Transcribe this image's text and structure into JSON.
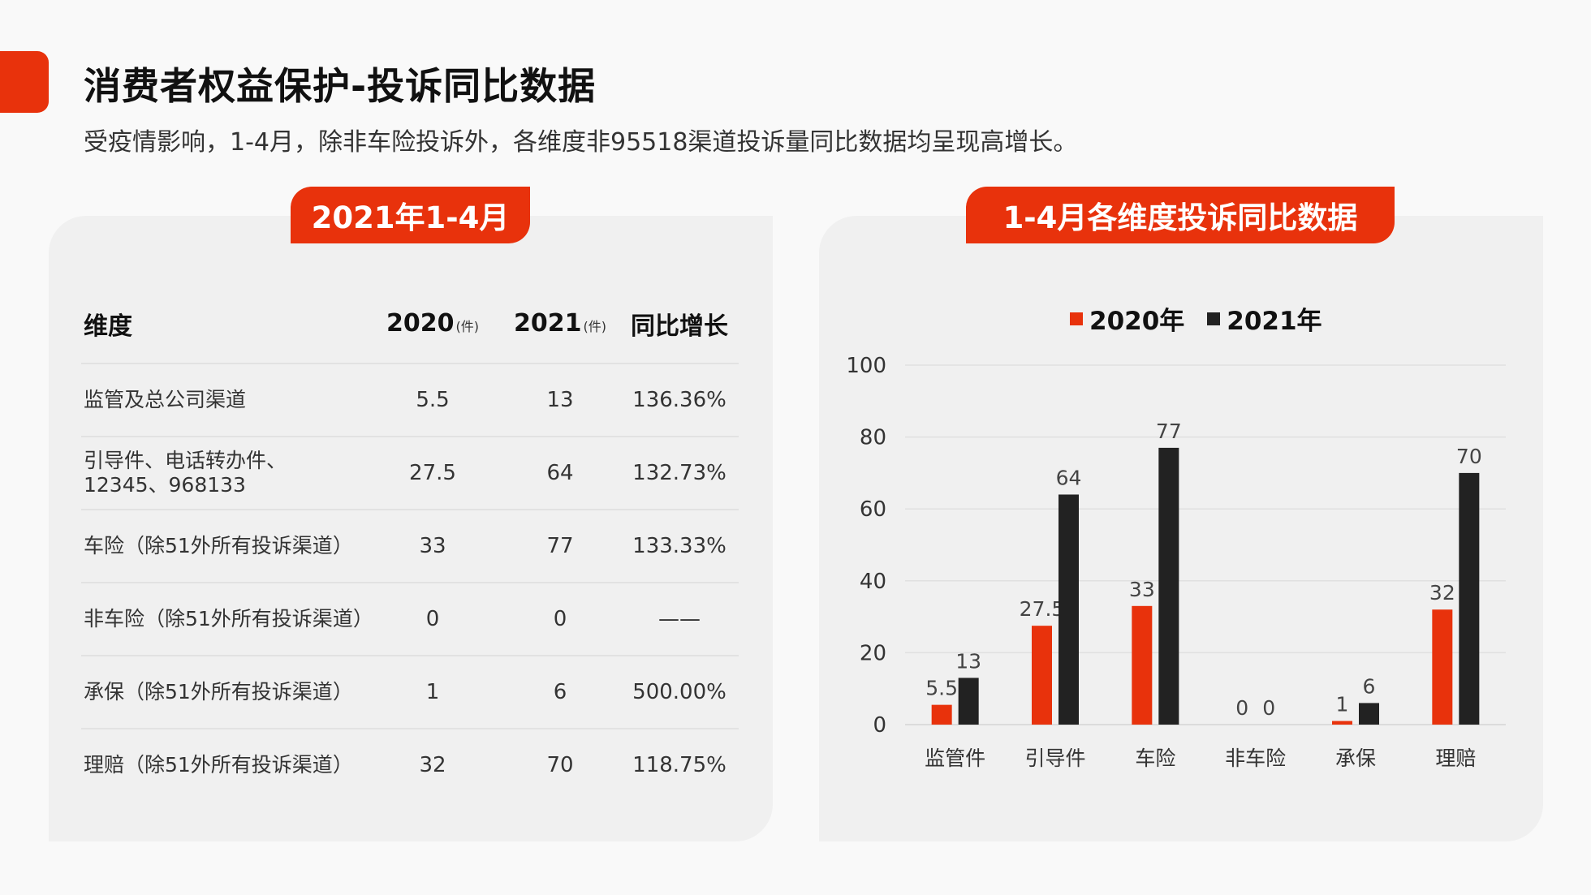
{
  "header": {
    "title": "消费者权益保护-投诉同比数据",
    "subtitle": "受疫情影响，1-4月，除非车险投诉外，各维度非95518渠道投诉量同比数据均呈现高增长。"
  },
  "left_panel": {
    "tab_label": "2021年1-4月",
    "columns": [
      {
        "label": "维度",
        "unit": ""
      },
      {
        "label": "2020",
        "unit": "(件)"
      },
      {
        "label": "2021",
        "unit": "(件)"
      },
      {
        "label": "同比增长",
        "unit": ""
      }
    ],
    "rows": [
      {
        "name": "监管及总公司渠道",
        "y2020": "5.5",
        "y2021": "13",
        "growth": "136.36%"
      },
      {
        "name": "引导件、电话转办件、12345、968133",
        "y2020": "27.5",
        "y2021": "64",
        "growth": "132.73%"
      },
      {
        "name": "车险（除51外所有投诉渠道）",
        "y2020": "33",
        "y2021": "77",
        "growth": "133.33%"
      },
      {
        "name": "非车险（除51外所有投诉渠道）",
        "y2020": "0",
        "y2021": "0",
        "growth": "——"
      },
      {
        "name": "承保（除51外所有投诉渠道）",
        "y2020": "1",
        "y2021": "6",
        "growth": "500.00%"
      },
      {
        "name": "理赔（除51外所有投诉渠道）",
        "y2020": "32",
        "y2021": "70",
        "growth": "118.75%"
      }
    ]
  },
  "right_panel": {
    "tab_label": "1-4月各维度投诉同比数据"
  },
  "colors": {
    "accent": "#e8320c",
    "series_2020": "#e8320c",
    "series_2021": "#222222"
  },
  "chart_data": {
    "type": "bar",
    "categories": [
      "监管件",
      "引导件",
      "车险",
      "非车险",
      "承保",
      "理赔"
    ],
    "series": [
      {
        "name": "2020年",
        "values": [
          5.5,
          27.5,
          33,
          0,
          1,
          32
        ]
      },
      {
        "name": "2021年",
        "values": [
          13,
          64,
          77,
          0,
          6,
          70
        ]
      }
    ],
    "ylim": [
      0,
      100
    ],
    "yticks": [
      0,
      20,
      40,
      60,
      80,
      100
    ],
    "grid": true,
    "legend_position": "top"
  }
}
